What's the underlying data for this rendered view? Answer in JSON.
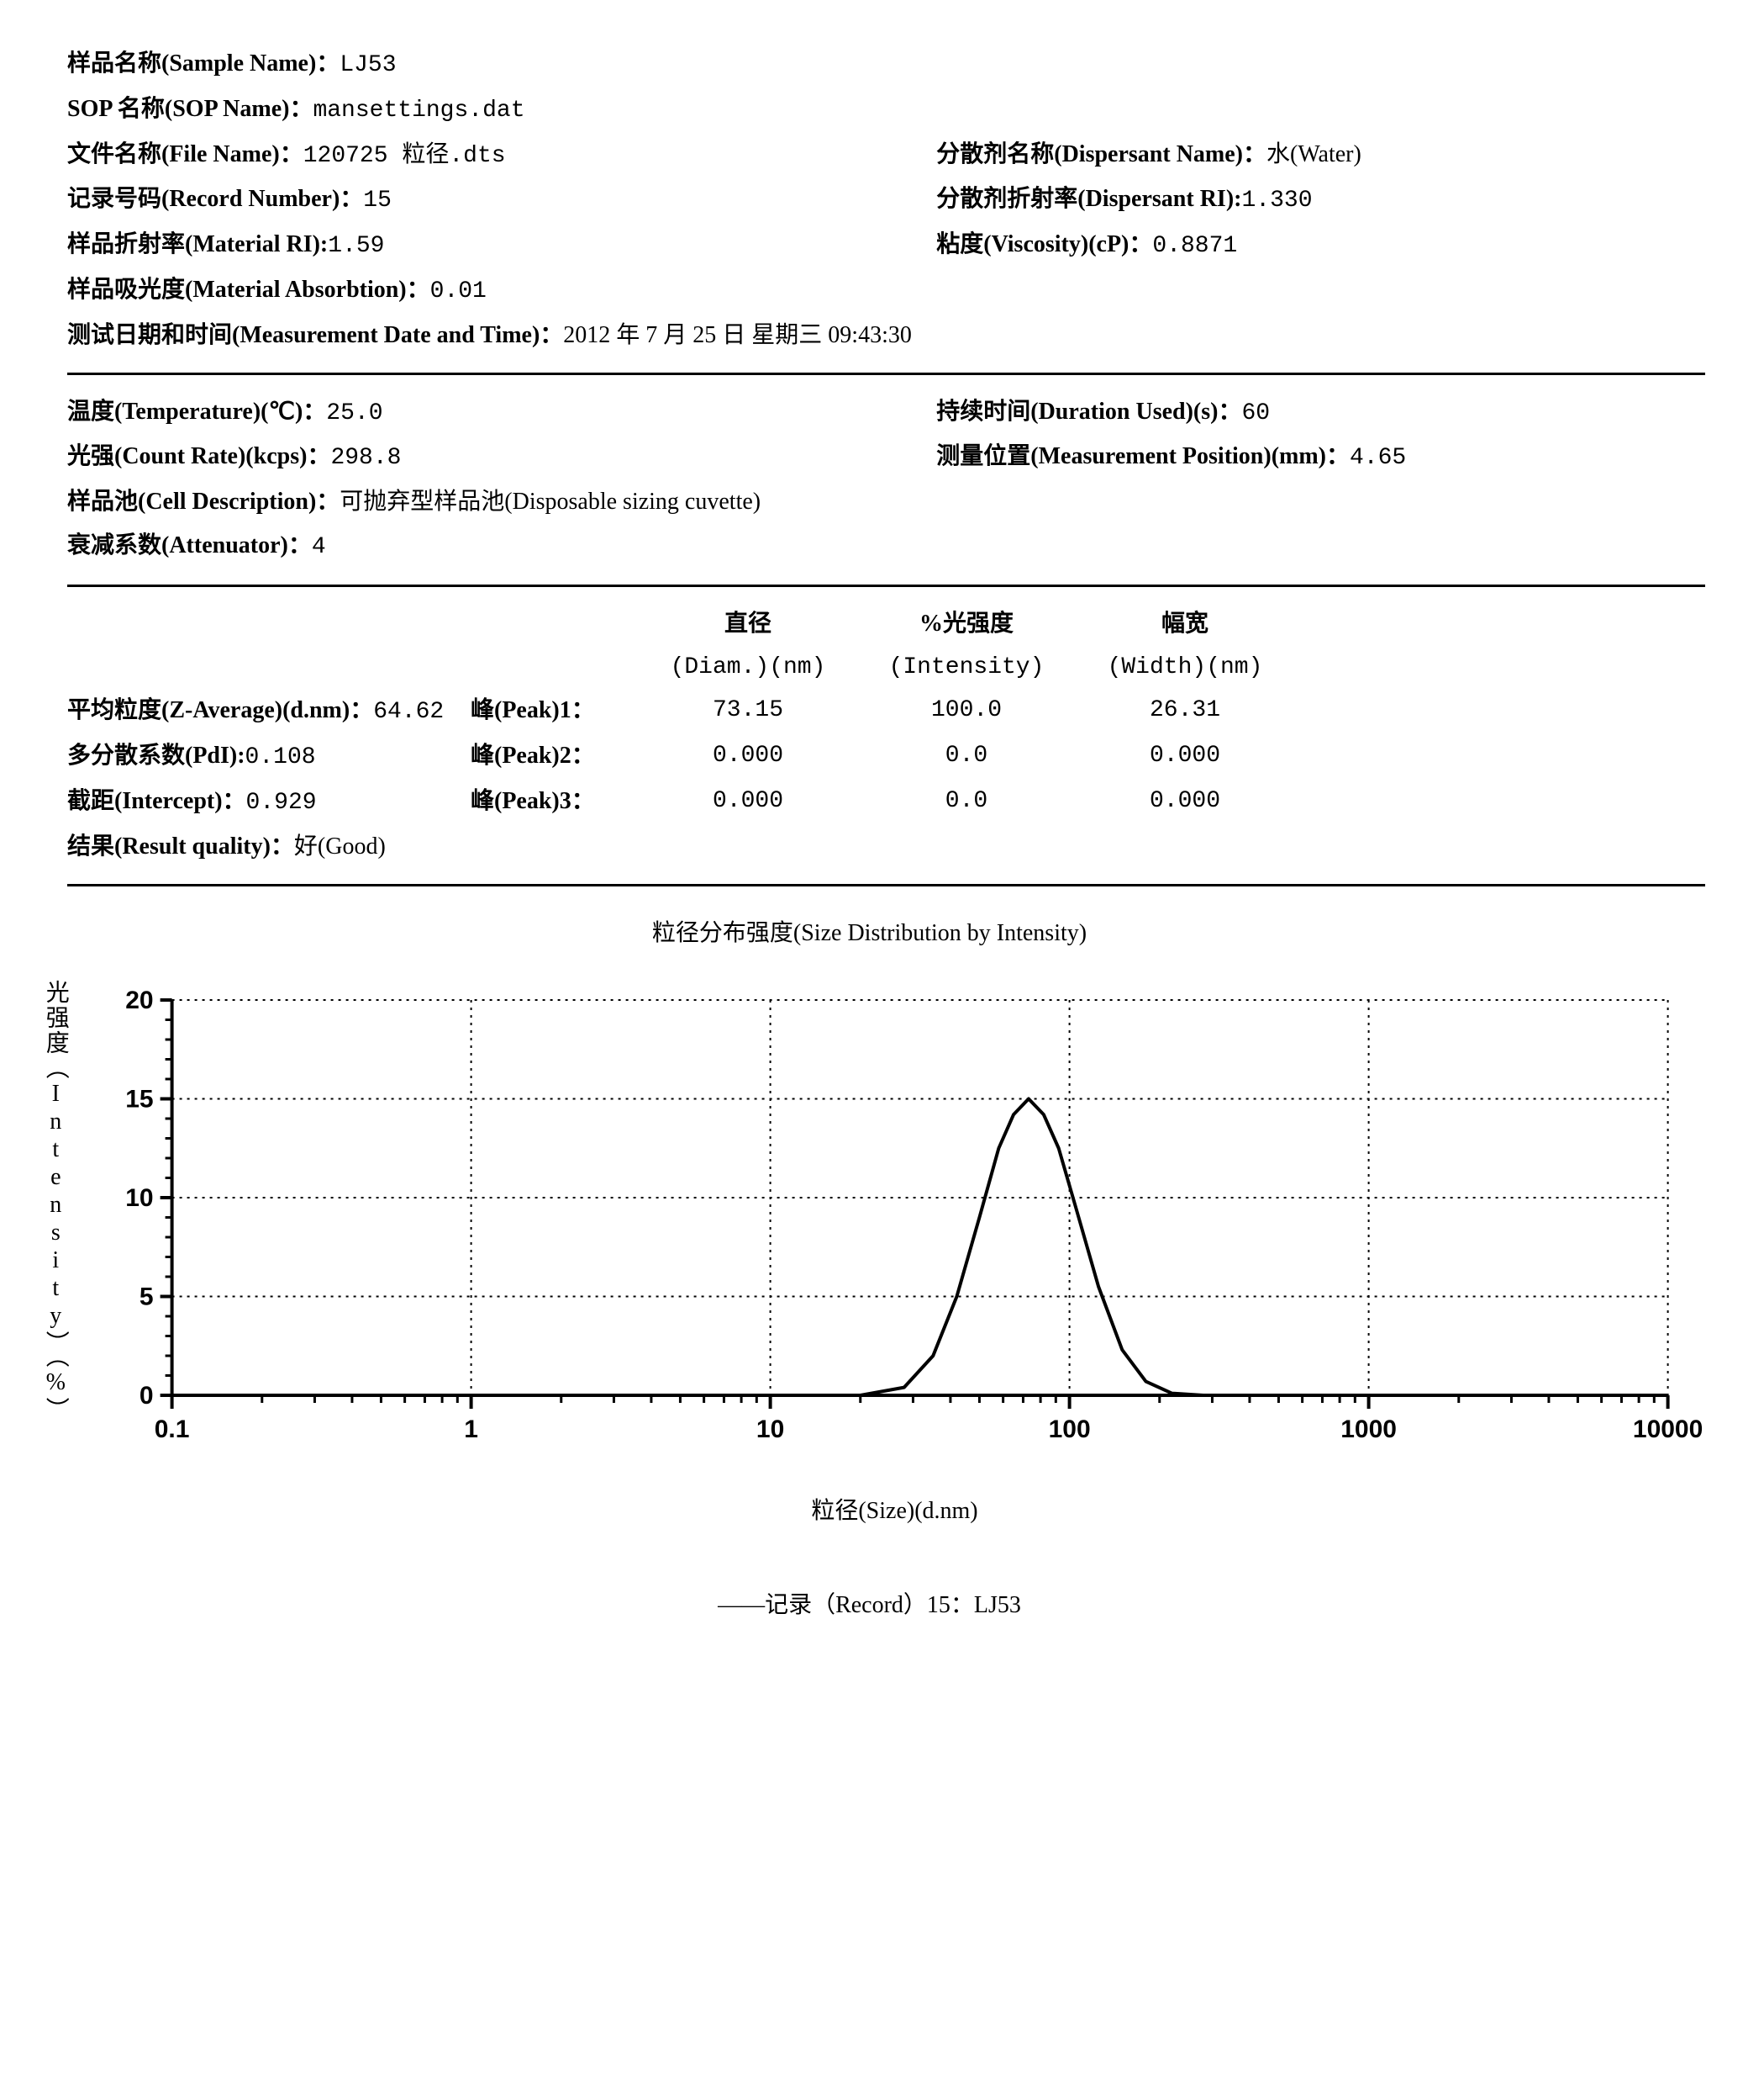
{
  "header": {
    "sample_name_label": "样品名称(Sample Name)：",
    "sample_name_value": "LJ53",
    "sop_label": "SOP 名称(SOP Name)：",
    "sop_value": "mansettings.dat",
    "file_label": "文件名称(File Name)：",
    "file_value": "120725 粒径.dts",
    "dispersant_label": "分散剂名称(Dispersant Name)：",
    "dispersant_value": "水(Water)",
    "record_label": "记录号码(Record Number)：",
    "record_value": "15",
    "disp_ri_label": "分散剂折射率(Dispersant RI):",
    "disp_ri_value": "1.330",
    "mat_ri_label": "样品折射率(Material RI):",
    "mat_ri_value": "1.59",
    "visc_label": "粘度(Viscosity)(cP)：",
    "visc_value": "0.8871",
    "abs_label": "样品吸光度(Material Absorbtion)：",
    "abs_value": "0.01",
    "date_label": "测试日期和时间(Measurement Date and Time)：",
    "date_value": "2012 年 7 月 25 日 星期三 09:43:30"
  },
  "conditions": {
    "temp_label": "温度(Temperature)(℃)：",
    "temp_value": "25.0",
    "duration_label": "持续时间(Duration Used)(s)：",
    "duration_value": "60",
    "count_label": "光强(Count Rate)(kcps)：",
    "count_value": "298.8",
    "pos_label": "测量位置(Measurement Position)(mm)：",
    "pos_value": "4.65",
    "cell_label": "样品池(Cell Description)：",
    "cell_value": "可抛弃型样品池(Disposable sizing cuvette)",
    "atten_label": "衰减系数(Attenuator)：",
    "atten_value": "4"
  },
  "results": {
    "zavg_label": "平均粒度(Z-Average)(d.nm)：",
    "zavg_value": "64.62",
    "pdi_label": "多分散系数(PdI):",
    "pdi_value": "0.108",
    "intercept_label": "截距(Intercept)：",
    "intercept_value": "0.929",
    "quality_label": "结果(Result quality)：",
    "quality_value": "好(Good)",
    "col_diam_header": "直径",
    "col_diam_sub": "(Diam.)(nm)",
    "col_int_header": "%光强度",
    "col_int_sub": "(Intensity)",
    "col_width_header": "幅宽",
    "col_width_sub": "(Width)(nm)",
    "peak1_label": "峰(Peak)1：",
    "peak2_label": "峰(Peak)2：",
    "peak3_label": "峰(Peak)3：",
    "peaks": [
      {
        "diam": "73.15",
        "intensity": "100.0",
        "width": "26.31"
      },
      {
        "diam": "0.000",
        "intensity": "0.0",
        "width": "0.000"
      },
      {
        "diam": "0.000",
        "intensity": "0.0",
        "width": "0.000"
      }
    ]
  },
  "chart": {
    "title": "粒径分布强度(Size Distribution by Intensity)",
    "ylabel": "光强度（Intensity）（%）",
    "xlabel": "粒径(Size)(d.nm)",
    "type": "line",
    "x_scale": "log",
    "xlim": [
      0.1,
      10000
    ],
    "ylim": [
      0,
      20
    ],
    "y_ticks": [
      0,
      5,
      10,
      15,
      20
    ],
    "x_ticks": [
      0.1,
      1,
      10,
      100,
      1000,
      10000
    ],
    "x_tick_labels": [
      "0.1",
      "1",
      "10",
      "100",
      "1000",
      "10000"
    ],
    "grid_style": "dotted",
    "grid_color": "#000000",
    "axis_color": "#000000",
    "line_color": "#000000",
    "line_width": 4,
    "background_color": "#ffffff",
    "tick_fontsize": 30,
    "tick_fontweight": "bold",
    "series": [
      {
        "x": 0.1,
        "y": 0
      },
      {
        "x": 20,
        "y": 0
      },
      {
        "x": 28,
        "y": 0.4
      },
      {
        "x": 35,
        "y": 2
      },
      {
        "x": 42,
        "y": 5
      },
      {
        "x": 50,
        "y": 9
      },
      {
        "x": 58,
        "y": 12.5
      },
      {
        "x": 65,
        "y": 14.2
      },
      {
        "x": 73,
        "y": 15
      },
      {
        "x": 82,
        "y": 14.2
      },
      {
        "x": 92,
        "y": 12.5
      },
      {
        "x": 105,
        "y": 9.5
      },
      {
        "x": 125,
        "y": 5.5
      },
      {
        "x": 150,
        "y": 2.3
      },
      {
        "x": 180,
        "y": 0.7
      },
      {
        "x": 220,
        "y": 0.1
      },
      {
        "x": 280,
        "y": 0
      },
      {
        "x": 10000,
        "y": 0
      }
    ]
  },
  "footer": {
    "record_line": "——记录（Record）15：LJ53"
  }
}
